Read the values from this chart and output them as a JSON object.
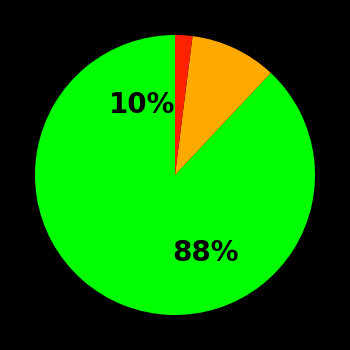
{
  "slices": [
    88,
    10,
    2
  ],
  "colors": [
    "#00ff00",
    "#ffaa00",
    "#ff2200"
  ],
  "labels": [
    "88%",
    "10%",
    ""
  ],
  "background_color": "#000000",
  "label_fontsize": 20,
  "label_fontweight": "bold",
  "startangle": 90,
  "figsize": [
    3.5,
    3.5
  ],
  "dpi": 100
}
